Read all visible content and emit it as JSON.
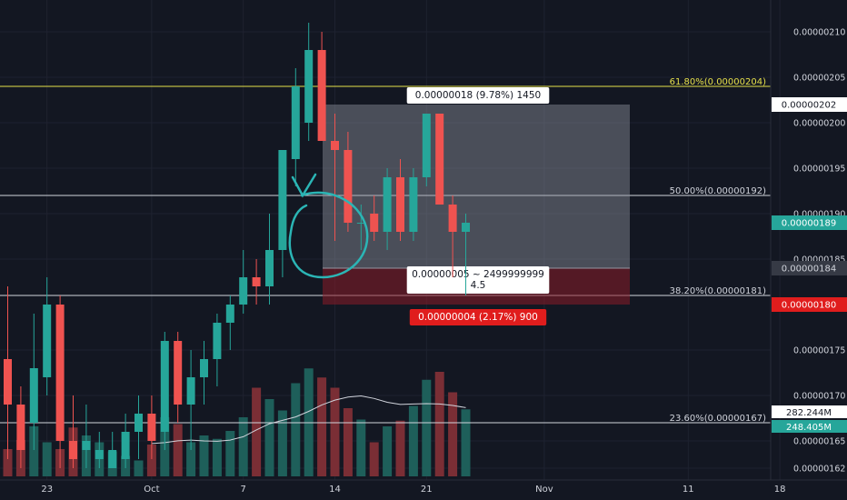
{
  "chart_data": {
    "type": "candlestick",
    "price_axis": {
      "ylim": [
        1.615e-06,
        2.115e-06
      ],
      "ticks": [
        "0.00000210",
        "0.00000205",
        "0.00000200",
        "0.00000195",
        "0.00000190",
        "0.00000185",
        "0.00000175",
        "0.00000170",
        "0.00000165",
        "0.00000162"
      ],
      "tick_values": [
        2.1e-06,
        2.05e-06,
        2e-06,
        1.95e-06,
        1.9e-06,
        1.85e-06,
        1.75e-06,
        1.7e-06,
        1.65e-06,
        1.62e-06
      ]
    },
    "time_axis": {
      "labels": [
        "23",
        "Oct",
        "7",
        "14",
        "21",
        "Nov",
        "11",
        "18"
      ],
      "label_index": [
        3,
        11,
        18,
        25,
        32,
        41,
        52,
        59
      ]
    },
    "candles": [
      {
        "i": 0,
        "o": 1.74e-06,
        "h": 1.82e-06,
        "l": 1.63e-06,
        "c": 1.69e-06
      },
      {
        "i": 1,
        "o": 1.69e-06,
        "h": 1.71e-06,
        "l": 1.62e-06,
        "c": 1.64e-06
      },
      {
        "i": 2,
        "o": 1.67e-06,
        "h": 1.79e-06,
        "l": 1.64e-06,
        "c": 1.73e-06
      },
      {
        "i": 3,
        "o": 1.72e-06,
        "h": 1.83e-06,
        "l": 1.7e-06,
        "c": 1.8e-06
      },
      {
        "i": 4,
        "o": 1.8e-06,
        "h": 1.81e-06,
        "l": 1.62e-06,
        "c": 1.65e-06
      },
      {
        "i": 5,
        "o": 1.65e-06,
        "h": 1.7e-06,
        "l": 1.62e-06,
        "c": 1.63e-06
      },
      {
        "i": 6,
        "o": 1.64e-06,
        "h": 1.69e-06,
        "l": 1.62e-06,
        "c": 1.65e-06
      },
      {
        "i": 7,
        "o": 1.63e-06,
        "h": 1.66e-06,
        "l": 1.62e-06,
        "c": 1.64e-06
      },
      {
        "i": 8,
        "o": 1.62e-06,
        "h": 1.66e-06,
        "l": 1.62e-06,
        "c": 1.64e-06
      },
      {
        "i": 9,
        "o": 1.63e-06,
        "h": 1.68e-06,
        "l": 1.62e-06,
        "c": 1.66e-06
      },
      {
        "i": 10,
        "o": 1.66e-06,
        "h": 1.7e-06,
        "l": 1.63e-06,
        "c": 1.68e-06
      },
      {
        "i": 11,
        "o": 1.68e-06,
        "h": 1.7e-06,
        "l": 1.63e-06,
        "c": 1.65e-06
      },
      {
        "i": 12,
        "o": 1.66e-06,
        "h": 1.77e-06,
        "l": 1.64e-06,
        "c": 1.76e-06
      },
      {
        "i": 13,
        "o": 1.76e-06,
        "h": 1.77e-06,
        "l": 1.67e-06,
        "c": 1.69e-06
      },
      {
        "i": 14,
        "o": 1.69e-06,
        "h": 1.75e-06,
        "l": 1.64e-06,
        "c": 1.72e-06
      },
      {
        "i": 15,
        "o": 1.72e-06,
        "h": 1.76e-06,
        "l": 1.69e-06,
        "c": 1.74e-06
      },
      {
        "i": 16,
        "o": 1.74e-06,
        "h": 1.79e-06,
        "l": 1.71e-06,
        "c": 1.78e-06
      },
      {
        "i": 17,
        "o": 1.78e-06,
        "h": 1.81e-06,
        "l": 1.75e-06,
        "c": 1.8e-06
      },
      {
        "i": 18,
        "o": 1.8e-06,
        "h": 1.86e-06,
        "l": 1.79e-06,
        "c": 1.83e-06
      },
      {
        "i": 19,
        "o": 1.83e-06,
        "h": 1.85e-06,
        "l": 1.8e-06,
        "c": 1.82e-06
      },
      {
        "i": 20,
        "o": 1.82e-06,
        "h": 1.9e-06,
        "l": 1.8e-06,
        "c": 1.86e-06
      },
      {
        "i": 21,
        "o": 1.86e-06,
        "h": 1.97e-06,
        "l": 1.83e-06,
        "c": 1.97e-06
      },
      {
        "i": 22,
        "o": 1.96e-06,
        "h": 2.06e-06,
        "l": 1.93e-06,
        "c": 2.04e-06
      },
      {
        "i": 23,
        "o": 2e-06,
        "h": 2.11e-06,
        "l": 1.98e-06,
        "c": 2.08e-06
      },
      {
        "i": 24,
        "o": 2.08e-06,
        "h": 2.1e-06,
        "l": 1.98e-06,
        "c": 1.98e-06
      },
      {
        "i": 25,
        "o": 1.98e-06,
        "h": 2.01e-06,
        "l": 1.87e-06,
        "c": 1.97e-06
      },
      {
        "i": 26,
        "o": 1.97e-06,
        "h": 1.99e-06,
        "l": 1.88e-06,
        "c": 1.89e-06
      },
      {
        "i": 27,
        "o": 1.89e-06,
        "h": 1.91e-06,
        "l": 1.86e-06,
        "c": 1.89e-06
      },
      {
        "i": 28,
        "o": 1.9e-06,
        "h": 1.92e-06,
        "l": 1.87e-06,
        "c": 1.88e-06
      },
      {
        "i": 29,
        "o": 1.88e-06,
        "h": 1.95e-06,
        "l": 1.86e-06,
        "c": 1.94e-06
      },
      {
        "i": 30,
        "o": 1.94e-06,
        "h": 1.96e-06,
        "l": 1.87e-06,
        "c": 1.88e-06
      },
      {
        "i": 31,
        "o": 1.88e-06,
        "h": 1.95e-06,
        "l": 1.87e-06,
        "c": 1.94e-06
      },
      {
        "i": 32,
        "o": 1.94e-06,
        "h": 2.01e-06,
        "l": 1.93e-06,
        "c": 2.01e-06
      },
      {
        "i": 33,
        "o": 2.01e-06,
        "h": 2.01e-06,
        "l": 1.91e-06,
        "c": 1.91e-06
      },
      {
        "i": 34,
        "o": 1.91e-06,
        "h": 1.92e-06,
        "l": 1.83e-06,
        "c": 1.88e-06
      },
      {
        "i": 35,
        "o": 1.88e-06,
        "h": 1.9e-06,
        "l": 1.81e-06,
        "c": 1.89e-06
      }
    ],
    "volume": {
      "ma_labels": [
        "282.244M",
        "248.405M"
      ],
      "values": [
        24,
        32,
        44,
        30,
        24,
        43,
        36,
        30,
        22,
        18,
        14,
        28,
        52,
        46,
        30,
        36,
        33,
        40,
        52,
        78,
        68,
        58,
        82,
        95,
        87,
        78,
        60,
        50,
        30,
        44,
        49,
        62,
        85,
        92,
        74,
        59
      ]
    },
    "fib_levels": [
      {
        "label": "61.80%(0.00000204)",
        "color": "#e6e04b",
        "value": 2.04e-06
      },
      {
        "label": "50.00%(0.00000192)",
        "color": "#d1d4dc",
        "value": 1.92e-06
      },
      {
        "label": "38.20%(0.00000181)",
        "color": "#d1d4dc",
        "value": 1.81e-06
      },
      {
        "label": "23.60%(0.00000167)",
        "color": "#d1d4dc",
        "value": 1.67e-06
      }
    ],
    "position": {
      "entry": 1.84e-06,
      "target": 2.02e-06,
      "stop": 1.8e-06,
      "x_from": 1.7e-06,
      "target_label": "0.00000018 (9.78%) 1450",
      "center_label_1": "0.00000005 ~ 2499999999",
      "center_label_2": "4.5",
      "stop_label": "0.00000004 (2.17%) 900"
    },
    "price_tags": [
      {
        "value": 2.02e-06,
        "label": "0.00000202",
        "bg": "#ffffff",
        "fg": "#131722"
      },
      {
        "value": 1.89e-06,
        "label": "0.00000189",
        "bg": "#26a69a",
        "fg": "#ffffff"
      },
      {
        "value": 1.84e-06,
        "label": "0.00000184",
        "bg": "#363a45",
        "fg": "#d1d4dc"
      },
      {
        "value": 1.8e-06,
        "label": "0.00000180",
        "bg": "#e01d1d",
        "fg": "#ffffff"
      }
    ],
    "colors": {
      "up": "#26a69a",
      "down": "#ef5350",
      "up_vol": "#1e5f5a",
      "down_vol": "#7a2e35",
      "bg": "#131722",
      "grid": "#1e2230",
      "annotation": "#2bb5b5"
    }
  }
}
